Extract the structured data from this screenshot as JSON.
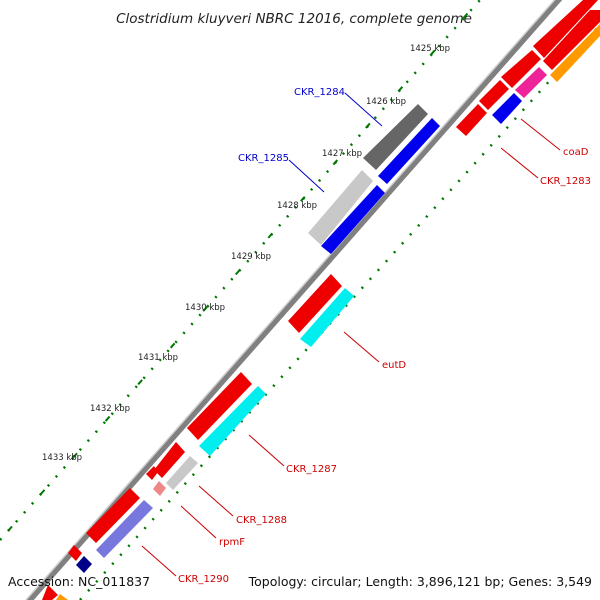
{
  "title": "Clostridium kluyveri NBRC 12016, complete genome",
  "footer": {
    "accession": "Accession: NC_011837",
    "topology": "Topology: circular; Length: 3,896,121 bp; Genes: 3,549"
  },
  "ticks": [
    "1425 kbp",
    "1426 kbp",
    "1427 kbp",
    "1428 kbp",
    "1429 kbp",
    "1430 kbp",
    "1431 kbp",
    "1432 kbp",
    "1433 kbp"
  ],
  "gene_labels": [
    {
      "id": "ckr-1284",
      "text": "CKR_1284",
      "color": "#0000cc"
    },
    {
      "id": "ckr-1285",
      "text": "CKR_1285",
      "color": "#0000cc"
    },
    {
      "id": "coad",
      "text": "coaD",
      "color": "#cc0000"
    },
    {
      "id": "ckr-1283",
      "text": "CKR_1283",
      "color": "#cc0000"
    },
    {
      "id": "eutd",
      "text": "eutD",
      "color": "#cc0000"
    },
    {
      "id": "ckr-1287",
      "text": "CKR_1287",
      "color": "#cc0000"
    },
    {
      "id": "ckr-1288",
      "text": "CKR_1288",
      "color": "#cc0000"
    },
    {
      "id": "rpmf",
      "text": "rpmF",
      "color": "#cc0000"
    },
    {
      "id": "ckr-1290",
      "text": "CKR_1290",
      "color": "#cc0000"
    }
  ],
  "colors": {
    "backbone": "#808080",
    "cds": "#ee0000",
    "forward": "#0000ee",
    "reverse_gray": "#666666",
    "light_gray": "#c8c8c8",
    "cyan": "#00eeee",
    "magenta": "#ee2299",
    "orange": "#ff9900",
    "lavender": "#7777dd",
    "navy": "#000088",
    "pink": "#ee8888",
    "tick_green": "#007700"
  }
}
